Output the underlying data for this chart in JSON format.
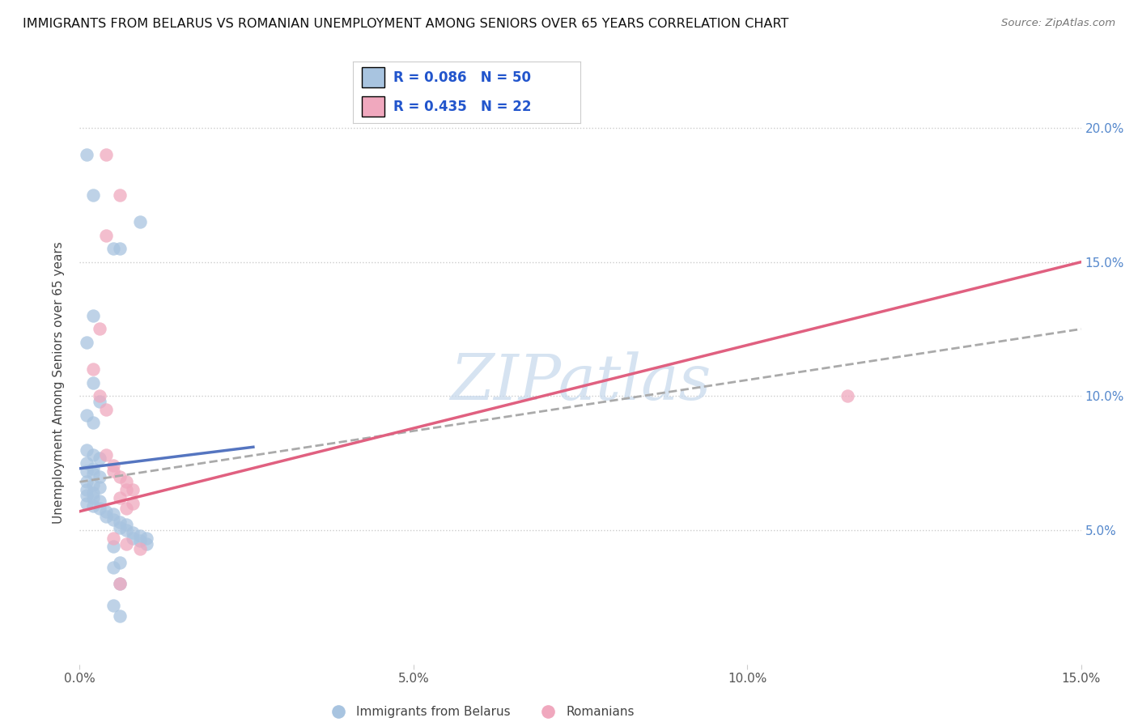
{
  "title": "IMMIGRANTS FROM BELARUS VS ROMANIAN UNEMPLOYMENT AMONG SENIORS OVER 65 YEARS CORRELATION CHART",
  "source": "Source: ZipAtlas.com",
  "ylabel": "Unemployment Among Seniors over 65 years",
  "xmin": 0.0,
  "xmax": 0.15,
  "ymin": 0.0,
  "ymax": 0.21,
  "yticks": [
    0.05,
    0.1,
    0.15,
    0.2
  ],
  "ytick_labels": [
    "5.0%",
    "10.0%",
    "15.0%",
    "20.0%"
  ],
  "xticks": [
    0.0,
    0.05,
    0.1,
    0.15
  ],
  "xtick_labels": [
    "0.0%",
    "5.0%",
    "10.0%",
    "15.0%"
  ],
  "color_blue": "#a8c4e0",
  "color_pink": "#f0a8be",
  "line_blue": "#5575c0",
  "line_pink": "#e06080",
  "line_dash_color": "#aaaaaa",
  "watermark": "ZIPatlas",
  "watermark_color": "#c5d8ec",
  "blue_points": [
    [
      0.001,
      0.19
    ],
    [
      0.002,
      0.175
    ],
    [
      0.009,
      0.165
    ],
    [
      0.005,
      0.155
    ],
    [
      0.006,
      0.155
    ],
    [
      0.002,
      0.13
    ],
    [
      0.001,
      0.12
    ],
    [
      0.002,
      0.105
    ],
    [
      0.003,
      0.098
    ],
    [
      0.001,
      0.093
    ],
    [
      0.002,
      0.09
    ],
    [
      0.001,
      0.08
    ],
    [
      0.002,
      0.078
    ],
    [
      0.003,
      0.077
    ],
    [
      0.001,
      0.075
    ],
    [
      0.002,
      0.073
    ],
    [
      0.001,
      0.072
    ],
    [
      0.002,
      0.071
    ],
    [
      0.003,
      0.07
    ],
    [
      0.001,
      0.068
    ],
    [
      0.002,
      0.067
    ],
    [
      0.003,
      0.066
    ],
    [
      0.001,
      0.065
    ],
    [
      0.002,
      0.064
    ],
    [
      0.001,
      0.063
    ],
    [
      0.002,
      0.062
    ],
    [
      0.003,
      0.061
    ],
    [
      0.001,
      0.06
    ],
    [
      0.002,
      0.059
    ],
    [
      0.003,
      0.058
    ],
    [
      0.004,
      0.057
    ],
    [
      0.005,
      0.056
    ],
    [
      0.004,
      0.055
    ],
    [
      0.005,
      0.054
    ],
    [
      0.006,
      0.053
    ],
    [
      0.007,
      0.052
    ],
    [
      0.006,
      0.051
    ],
    [
      0.007,
      0.05
    ],
    [
      0.008,
      0.049
    ],
    [
      0.009,
      0.048
    ],
    [
      0.008,
      0.047
    ],
    [
      0.01,
      0.047
    ],
    [
      0.009,
      0.046
    ],
    [
      0.01,
      0.045
    ],
    [
      0.005,
      0.044
    ],
    [
      0.006,
      0.038
    ],
    [
      0.005,
      0.036
    ],
    [
      0.006,
      0.03
    ],
    [
      0.005,
      0.022
    ],
    [
      0.006,
      0.018
    ]
  ],
  "pink_points": [
    [
      0.004,
      0.19
    ],
    [
      0.006,
      0.175
    ],
    [
      0.004,
      0.16
    ],
    [
      0.003,
      0.125
    ],
    [
      0.002,
      0.11
    ],
    [
      0.003,
      0.1
    ],
    [
      0.004,
      0.095
    ],
    [
      0.004,
      0.078
    ],
    [
      0.005,
      0.074
    ],
    [
      0.005,
      0.072
    ],
    [
      0.006,
      0.07
    ],
    [
      0.007,
      0.068
    ],
    [
      0.007,
      0.065
    ],
    [
      0.008,
      0.065
    ],
    [
      0.006,
      0.062
    ],
    [
      0.008,
      0.06
    ],
    [
      0.007,
      0.058
    ],
    [
      0.005,
      0.047
    ],
    [
      0.007,
      0.045
    ],
    [
      0.009,
      0.043
    ],
    [
      0.115,
      0.1
    ],
    [
      0.006,
      0.03
    ]
  ],
  "blue_line_x": [
    0.0,
    0.026
  ],
  "blue_line_y": [
    0.073,
    0.081
  ],
  "pink_line_x": [
    0.0,
    0.15
  ],
  "pink_line_y": [
    0.057,
    0.15
  ],
  "dash_line_x": [
    0.0,
    0.15
  ],
  "dash_line_y": [
    0.068,
    0.125
  ]
}
